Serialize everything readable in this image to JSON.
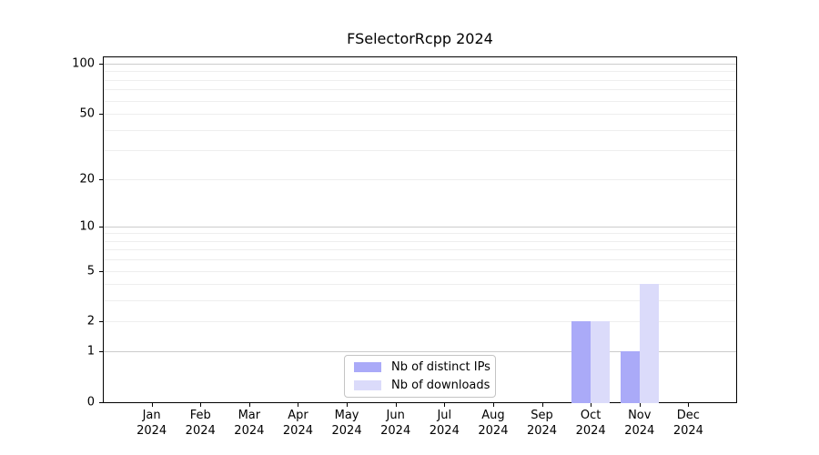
{
  "chart_data": {
    "type": "bar",
    "title": "FSelectorRcpp 2024",
    "x_categories": [
      {
        "label": "Jan",
        "sub": "2024"
      },
      {
        "label": "Feb",
        "sub": "2024"
      },
      {
        "label": "Mar",
        "sub": "2024"
      },
      {
        "label": "Apr",
        "sub": "2024"
      },
      {
        "label": "May",
        "sub": "2024"
      },
      {
        "label": "Jun",
        "sub": "2024"
      },
      {
        "label": "Jul",
        "sub": "2024"
      },
      {
        "label": "Aug",
        "sub": "2024"
      },
      {
        "label": "Sep",
        "sub": "2024"
      },
      {
        "label": "Oct",
        "sub": "2024"
      },
      {
        "label": "Nov",
        "sub": "2024"
      },
      {
        "label": "Dec",
        "sub": "2024"
      }
    ],
    "series": [
      {
        "name": "Nb of distinct IPs",
        "color": "#aaaaf8",
        "values": [
          0,
          0,
          0,
          0,
          0,
          0,
          0,
          0,
          0,
          2,
          1,
          0
        ]
      },
      {
        "name": "Nb of downloads",
        "color": "#dbdbfa",
        "values": [
          0,
          0,
          0,
          0,
          0,
          0,
          0,
          0,
          0,
          2,
          4,
          0
        ]
      }
    ],
    "y_axis": {
      "scale": "log1p",
      "range": [
        0,
        100
      ],
      "ticks": [
        0,
        1,
        2,
        5,
        10,
        20,
        50,
        100
      ],
      "major_gridlines": [
        1,
        10,
        100
      ],
      "minor_gridlines": [
        2,
        3,
        4,
        5,
        6,
        7,
        8,
        9,
        20,
        30,
        40,
        50,
        60,
        70,
        80,
        90
      ]
    },
    "legend": {
      "position": "bottom-center",
      "entries": [
        "Nb of distinct IPs",
        "Nb of downloads"
      ]
    },
    "grid": true,
    "colors": {
      "major_grid": "#cccccc",
      "minor_grid": "#eeeeee",
      "spine": "#000000",
      "legend_border": "#c4c4c4",
      "text": "#000000",
      "background": "#ffffff"
    }
  }
}
